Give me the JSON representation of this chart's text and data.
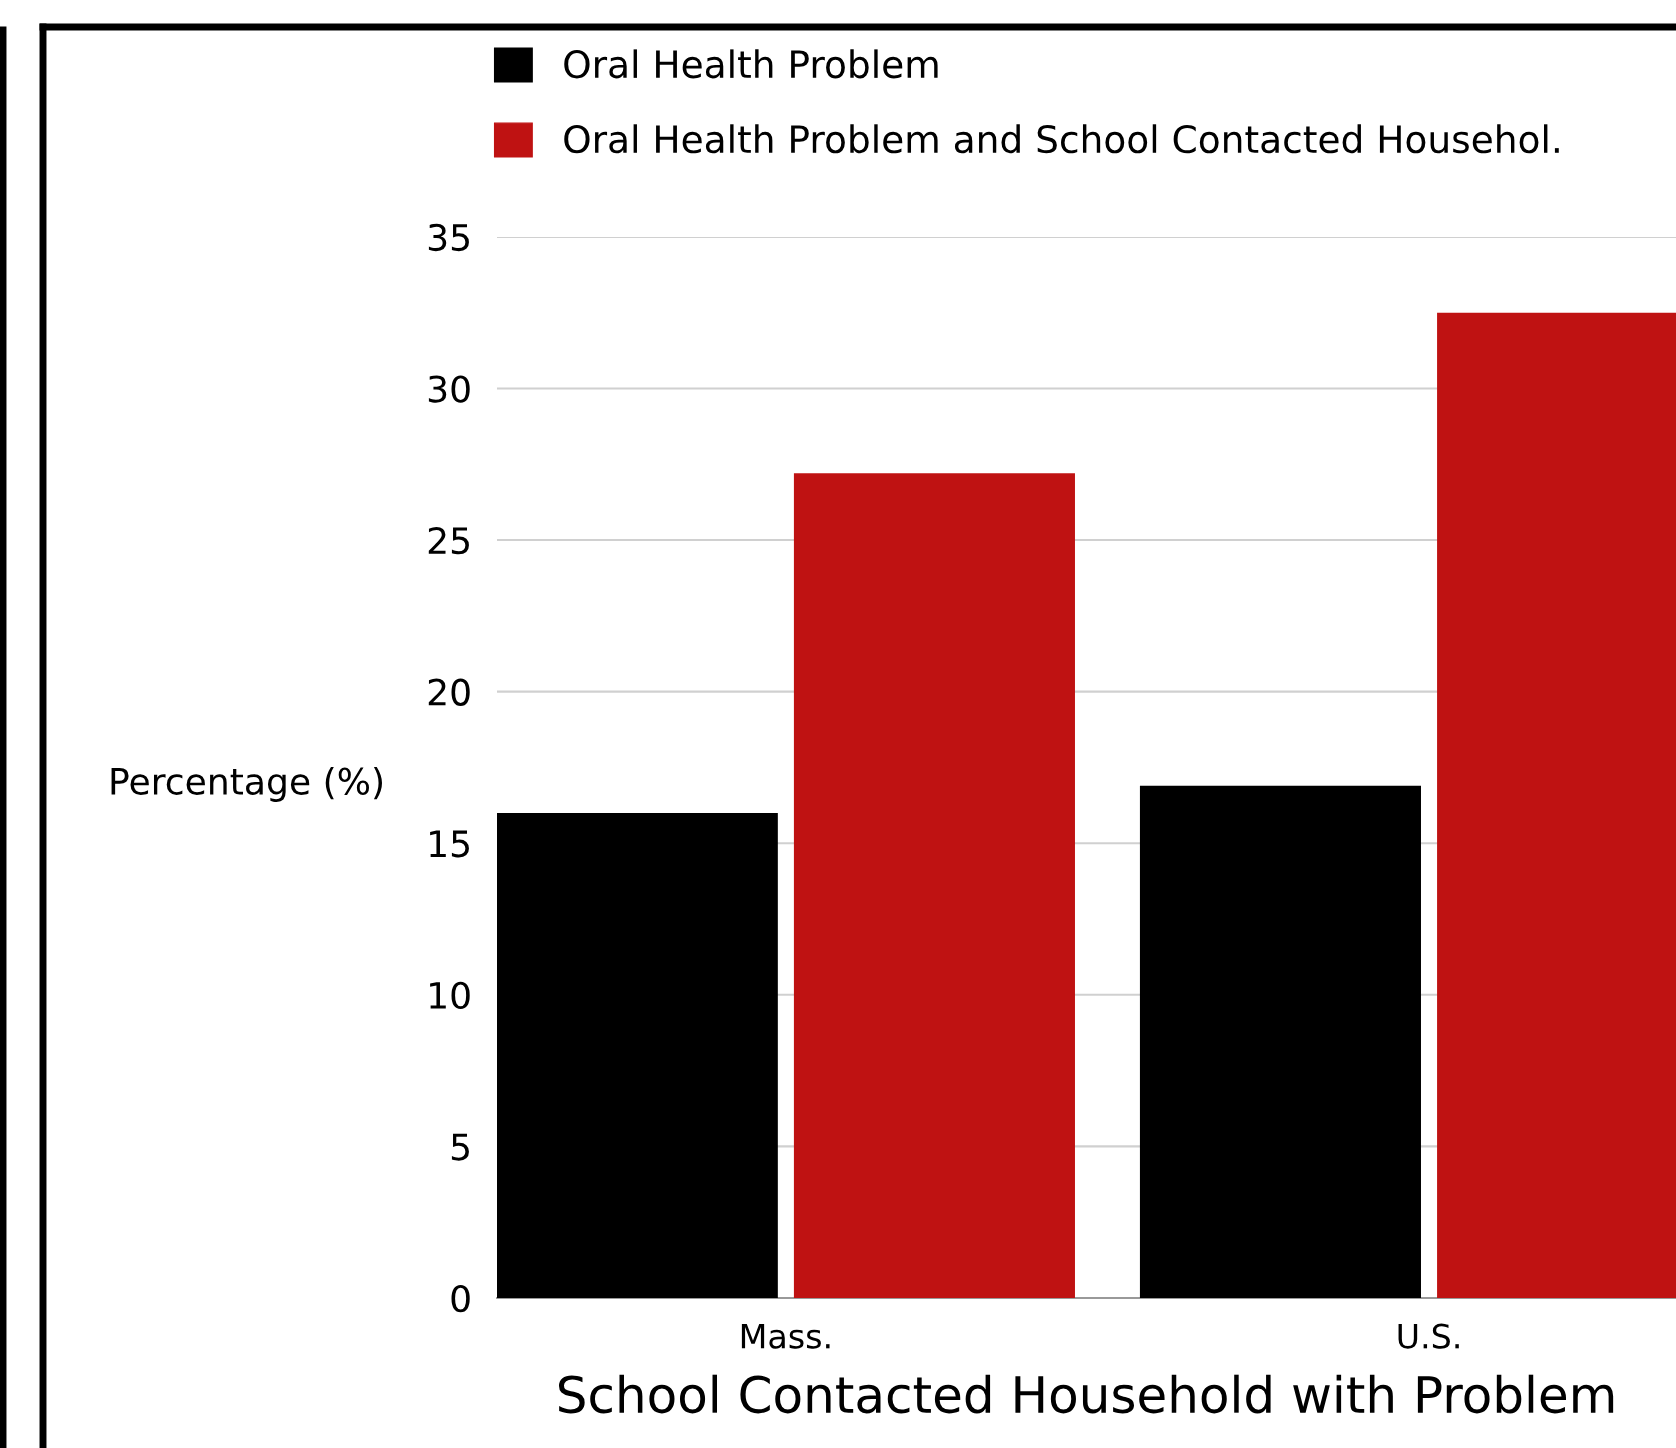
{
  "chart_data": {
    "type": "bar",
    "xlabel": "School Contacted Household with Problem",
    "ylabel": "Percentage (%)",
    "categories": [
      "Mass.",
      "U.S."
    ],
    "series": [
      {
        "name": "Oral Health Problem",
        "color": "#000000",
        "values": [
          16,
          16.9
        ]
      },
      {
        "name": "Oral Health Problem and School Contacted Househol.",
        "color": "#bf1212",
        "values": [
          27.2,
          32.5
        ]
      }
    ],
    "ylim": [
      0,
      35
    ],
    "yticks": [
      0,
      5,
      10,
      15,
      20,
      25,
      30,
      35
    ],
    "grid": "y",
    "legend": "top left"
  }
}
